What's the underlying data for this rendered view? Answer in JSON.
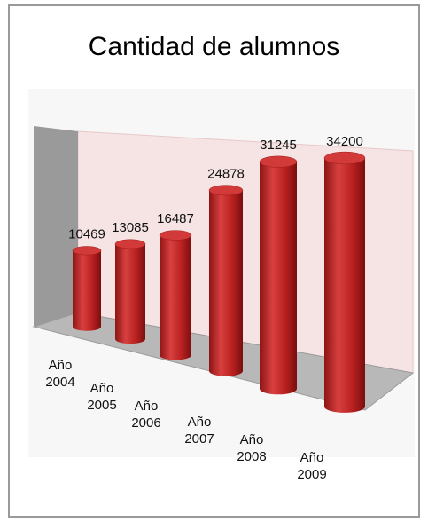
{
  "chart_data": {
    "type": "bar",
    "title": "Cantidad de alumnos",
    "categories": [
      "Año 2004",
      "Año 2005",
      "Año 2006",
      "Año 2007",
      "Año 2008",
      "Año 2009"
    ],
    "values": [
      10469,
      13085,
      16487,
      24878,
      31245,
      34200
    ],
    "color": "#c0282a"
  }
}
